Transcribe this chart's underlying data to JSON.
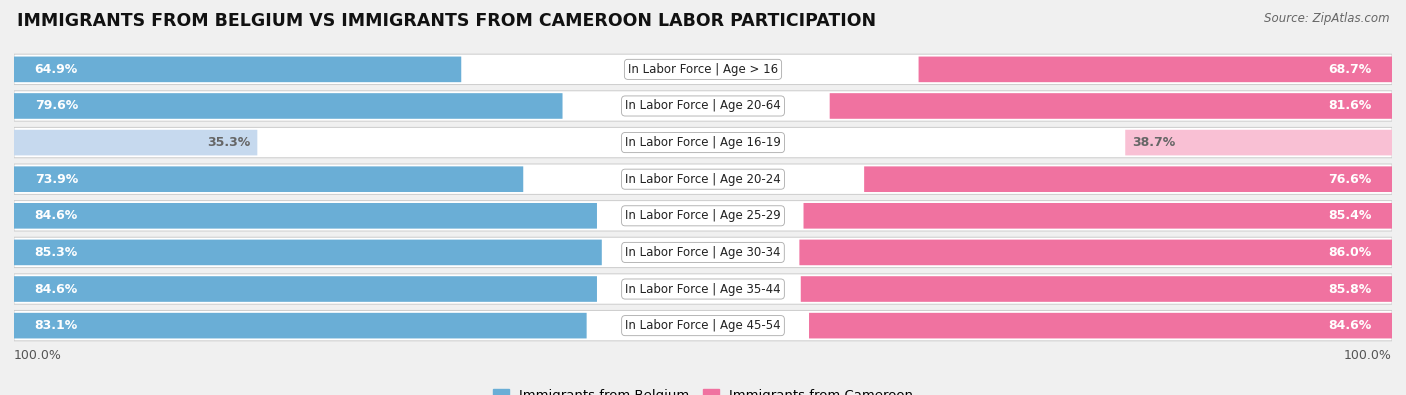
{
  "title": "IMMIGRANTS FROM BELGIUM VS IMMIGRANTS FROM CAMEROON LABOR PARTICIPATION",
  "source": "Source: ZipAtlas.com",
  "categories": [
    "In Labor Force | Age > 16",
    "In Labor Force | Age 20-64",
    "In Labor Force | Age 16-19",
    "In Labor Force | Age 20-24",
    "In Labor Force | Age 25-29",
    "In Labor Force | Age 30-34",
    "In Labor Force | Age 35-44",
    "In Labor Force | Age 45-54"
  ],
  "belgium_values": [
    64.9,
    79.6,
    35.3,
    73.9,
    84.6,
    85.3,
    84.6,
    83.1
  ],
  "cameroon_values": [
    68.7,
    81.6,
    38.7,
    76.6,
    85.4,
    86.0,
    85.8,
    84.6
  ],
  "belgium_color_dark": "#6aaed6",
  "belgium_color_light": "#c6d9ee",
  "cameroon_color_dark": "#f072a0",
  "cameroon_color_light": "#f9c0d4",
  "bar_height": 0.68,
  "background_color": "#f0f0f0",
  "row_bg_color": "#ffffff",
  "legend_belgium": "Immigrants from Belgium",
  "legend_cameroon": "Immigrants from Cameroon",
  "axis_label": "100.0%",
  "title_fontsize": 12.5,
  "label_fontsize": 9.0,
  "cat_fontsize": 8.5
}
